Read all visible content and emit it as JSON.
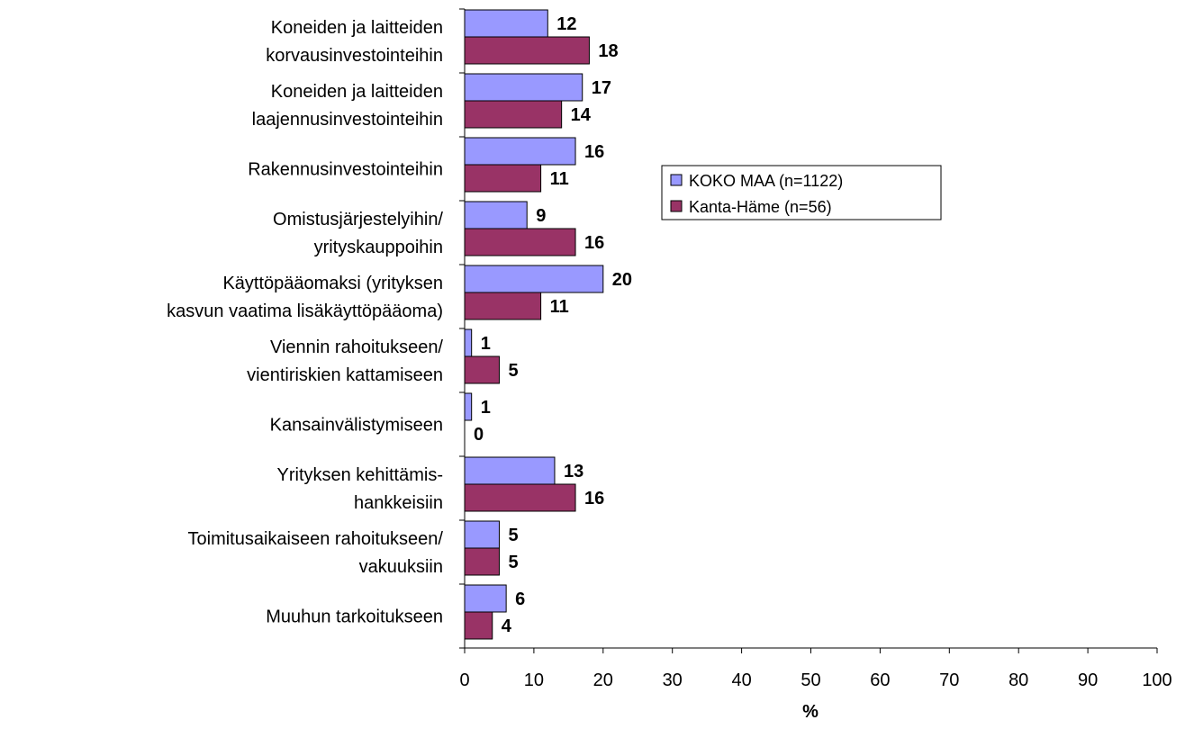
{
  "chart_data": {
    "type": "bar",
    "orientation": "horizontal",
    "x_label": "%",
    "categories": [
      "Koneiden ja laitteiden\nkorvausinvestointeihin",
      "Koneiden ja laitteiden\nlaajennusinvestointeihin",
      "Rakennusinvestointeihin",
      "Omistusjärjestelyihin/\nyrityskauppoihin",
      "Käyttöpääomaksi (yrityksen\nkasvun vaatima lisäkäyttöpääoma)",
      "Viennin rahoitukseen/\nvientiriskien kattamiseen",
      "Kansainvälistymiseen",
      "Yrityksen kehittämis-\nhankkeisiin",
      "Toimitusaikaiseen rahoitukseen/\nvakuuksiin",
      "Muuhun tarkoitukseen"
    ],
    "series": [
      {
        "name": "KOKO MAA (n=1122)",
        "color": "#9999ff",
        "values": [
          12,
          17,
          16,
          9,
          20,
          1,
          1,
          13,
          5,
          6
        ]
      },
      {
        "name": "Kanta-Häme (n=56)",
        "color": "#993366",
        "values": [
          18,
          14,
          11,
          16,
          11,
          5,
          0,
          16,
          5,
          4
        ]
      }
    ],
    "xlim": [
      0,
      100
    ],
    "xticks": [
      0,
      10,
      20,
      30,
      40,
      50,
      60,
      70,
      80,
      90,
      100
    ],
    "legend": "right"
  }
}
